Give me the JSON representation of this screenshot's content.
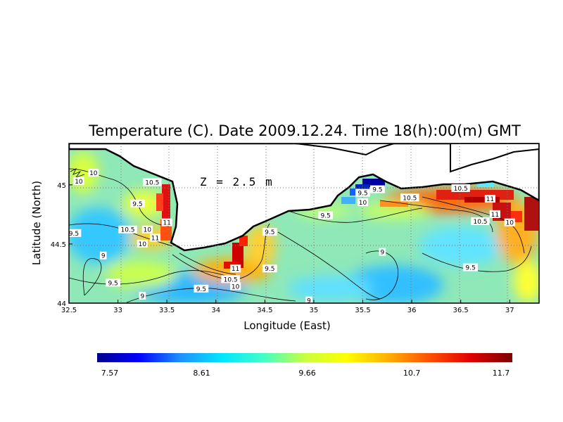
{
  "title": "Temperature (C). Date 2009.12.24. Time 18(h):00(m) GMT",
  "depth_label": "Z = 2.5 m",
  "axes": {
    "xlabel": "Longitude (East)",
    "ylabel": "Latitude (North)",
    "x_ticks": [
      "32.5",
      "33",
      "33.5",
      "34",
      "34.5",
      "35",
      "35.5",
      "36",
      "36.5",
      "37"
    ],
    "y_ticks": [
      "45",
      "44.5",
      "44"
    ]
  },
  "colorbar": {
    "ticks": [
      "7.57",
      "8.61",
      "9.66",
      "10.7",
      "11.7"
    ],
    "colors": [
      "#00008b",
      "#0000ff",
      "#1e90ff",
      "#00e5ff",
      "#40ffc8",
      "#c8ff40",
      "#ffff00",
      "#ffb000",
      "#ff5000",
      "#e00000",
      "#7a0000"
    ]
  },
  "chart_data": {
    "type": "heatmap",
    "variable": "Temperature (C)",
    "date": "2009.12.24",
    "time": "18(h):00(m) GMT",
    "depth": "Z = 2.5 m",
    "xlim": [
      32.5,
      37.3
    ],
    "ylim": [
      44.0,
      45.35
    ],
    "color_range": [
      7.57,
      11.7
    ],
    "contour_labels": [
      {
        "text": "10",
        "lon": 32.75,
        "lat": 45.1
      },
      {
        "text": "10",
        "lon": 32.6,
        "lat": 45.03
      },
      {
        "text": "10.5",
        "lon": 33.35,
        "lat": 45.02
      },
      {
        "text": "9.5",
        "lon": 33.2,
        "lat": 44.84
      },
      {
        "text": "11",
        "lon": 33.5,
        "lat": 44.68
      },
      {
        "text": "10.5",
        "lon": 33.1,
        "lat": 44.62
      },
      {
        "text": "10",
        "lon": 33.3,
        "lat": 44.62
      },
      {
        "text": "11",
        "lon": 33.38,
        "lat": 44.55
      },
      {
        "text": "10",
        "lon": 33.25,
        "lat": 44.5
      },
      {
        "text": "9.5",
        "lon": 32.55,
        "lat": 44.59
      },
      {
        "text": "9",
        "lon": 32.85,
        "lat": 44.4
      },
      {
        "text": "9.5",
        "lon": 32.95,
        "lat": 44.17
      },
      {
        "text": "9",
        "lon": 33.25,
        "lat": 44.06
      },
      {
        "text": "9.5",
        "lon": 33.85,
        "lat": 44.12
      },
      {
        "text": "10",
        "lon": 34.2,
        "lat": 44.14
      },
      {
        "text": "10.5",
        "lon": 34.15,
        "lat": 44.2
      },
      {
        "text": "11",
        "lon": 34.2,
        "lat": 44.29
      },
      {
        "text": "9.5",
        "lon": 34.55,
        "lat": 44.6
      },
      {
        "text": "9.5",
        "lon": 34.55,
        "lat": 44.29
      },
      {
        "text": "9",
        "lon": 34.95,
        "lat": 44.02
      },
      {
        "text": "9.5",
        "lon": 35.12,
        "lat": 44.74
      },
      {
        "text": "10",
        "lon": 35.5,
        "lat": 44.85
      },
      {
        "text": "9.5",
        "lon": 35.65,
        "lat": 44.96
      },
      {
        "text": "9.5",
        "lon": 35.5,
        "lat": 44.93
      },
      {
        "text": "9",
        "lon": 35.7,
        "lat": 44.43
      },
      {
        "text": "10.5",
        "lon": 36.5,
        "lat": 44.97
      },
      {
        "text": "10.5",
        "lon": 35.98,
        "lat": 44.89
      },
      {
        "text": "11",
        "lon": 36.8,
        "lat": 44.88
      },
      {
        "text": "11",
        "lon": 36.85,
        "lat": 44.75
      },
      {
        "text": "10.5",
        "lon": 36.7,
        "lat": 44.69
      },
      {
        "text": "10",
        "lon": 37.0,
        "lat": 44.68
      },
      {
        "text": "9.5",
        "lon": 36.6,
        "lat": 44.3
      }
    ]
  }
}
